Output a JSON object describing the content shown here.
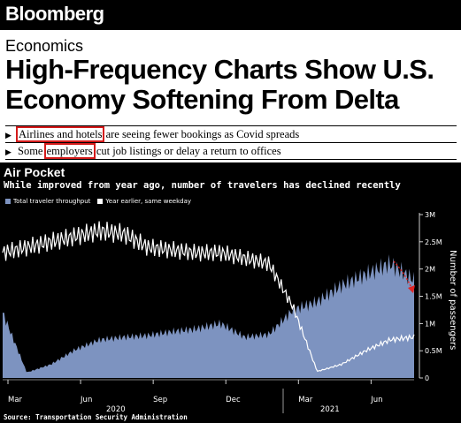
{
  "brand": "Bloomberg",
  "section": "Economics",
  "headline": "High-Frequency Charts Show U.S. Economy Softening From Delta",
  "bullets": [
    {
      "highlight": "Airlines and hotels",
      "rest": " are seeing fewer bookings as Covid spreads"
    },
    {
      "pre": "Some ",
      "highlight": "employers",
      "rest": " cut job listings or delay a return to offices"
    }
  ],
  "chart": {
    "title": "Air Pocket",
    "subtitle": "While improved from year ago, number of travelers has declined recently",
    "legend": [
      {
        "label": "Total traveler throughput",
        "color": "#7d93c0"
      },
      {
        "label": "Year earlier, same weekday",
        "color": "#ffffff"
      }
    ],
    "source": "Source: Transportation Security Administration",
    "colors": {
      "area": "#7d93c0",
      "line": "#ffffff",
      "trend_arrow": "#e02424",
      "background": "#000000"
    }
  },
  "chart_data": {
    "type": "area",
    "title": "Air Pocket",
    "subtitle": "While improved from year ago, number of travelers has declined recently",
    "ylabel": "Number of passengers",
    "yticks": [
      "0",
      "0.5M",
      "1M",
      "1.5M",
      "2M",
      "2.5M",
      "3M"
    ],
    "ylim": [
      0,
      3000000
    ],
    "xticks": [
      "Mar",
      "Jun",
      "Sep",
      "Dec",
      "Mar",
      "Jun"
    ],
    "year_labels": [
      "2020",
      "2021"
    ],
    "x_months": [
      "2020-03",
      "2020-04",
      "2020-05",
      "2020-06",
      "2020-07",
      "2020-08",
      "2020-09",
      "2020-10",
      "2020-11",
      "2020-12",
      "2021-01",
      "2021-02",
      "2021-03",
      "2021-04",
      "2021-05",
      "2021-06",
      "2021-07",
      "2021-08"
    ],
    "series": [
      {
        "name": "Total traveler throughput",
        "values": [
          1200000,
          100000,
          250000,
          520000,
          700000,
          750000,
          780000,
          850000,
          900000,
          1000000,
          750000,
          800000,
          1250000,
          1400000,
          1700000,
          1900000,
          2100000,
          1800000
        ]
      },
      {
        "name": "Year earlier, same weekday",
        "values": [
          2300000,
          2400000,
          2500000,
          2600000,
          2700000,
          2650000,
          2400000,
          2350000,
          2300000,
          2300000,
          2200000,
          2100000,
          1300000,
          120000,
          250000,
          500000,
          700000,
          750000
        ]
      }
    ],
    "legend_position": "top-left",
    "grid": false
  }
}
